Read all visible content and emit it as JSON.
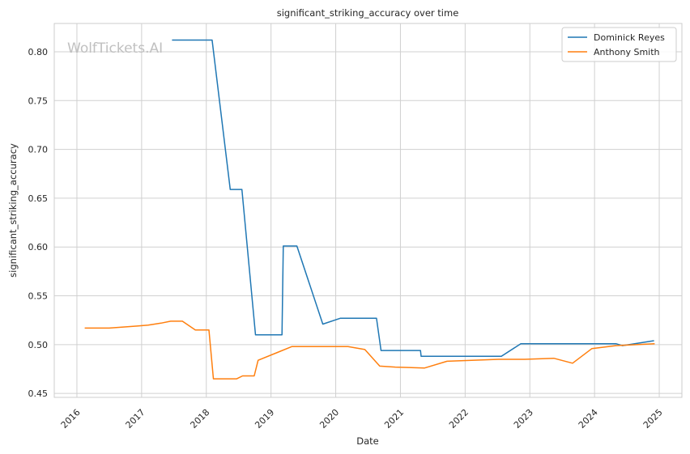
{
  "chart_data": {
    "type": "line",
    "title": "significant_striking_accuracy over time",
    "xlabel": "Date",
    "ylabel": "significant_striking_accuracy",
    "x_ticks": [
      "2016",
      "2017",
      "2018",
      "2019",
      "2020",
      "2021",
      "2022",
      "2023",
      "2024",
      "2025"
    ],
    "y_ticks": [
      "0.45",
      "0.50",
      "0.55",
      "0.60",
      "0.65",
      "0.70",
      "0.75",
      "0.80"
    ],
    "xlim": [
      2015.65,
      2025.35
    ],
    "ylim": [
      0.446,
      0.829
    ],
    "grid": true,
    "legend_position": "top-right",
    "watermark": "WolfTickets.AI",
    "series": [
      {
        "name": "Dominick Reyes",
        "color": "#1f77b4",
        "points": [
          [
            2017.47,
            0.812
          ],
          [
            2018.09,
            0.812
          ],
          [
            2018.37,
            0.659
          ],
          [
            2018.55,
            0.659
          ],
          [
            2018.76,
            0.51
          ],
          [
            2019.17,
            0.51
          ],
          [
            2019.19,
            0.601
          ],
          [
            2019.4,
            0.601
          ],
          [
            2019.8,
            0.521
          ],
          [
            2020.07,
            0.527
          ],
          [
            2020.63,
            0.527
          ],
          [
            2020.7,
            0.494
          ],
          [
            2021.31,
            0.494
          ],
          [
            2021.32,
            0.488
          ],
          [
            2022.56,
            0.488
          ],
          [
            2022.86,
            0.501
          ],
          [
            2024.33,
            0.501
          ],
          [
            2024.43,
            0.499
          ],
          [
            2024.92,
            0.504
          ]
        ]
      },
      {
        "name": "Anthony Smith",
        "color": "#ff7f0e",
        "points": [
          [
            2016.12,
            0.517
          ],
          [
            2016.5,
            0.517
          ],
          [
            2016.93,
            0.519
          ],
          [
            2017.1,
            0.52
          ],
          [
            2017.3,
            0.522
          ],
          [
            2017.45,
            0.524
          ],
          [
            2017.63,
            0.524
          ],
          [
            2017.83,
            0.515
          ],
          [
            2018.04,
            0.515
          ],
          [
            2018.11,
            0.465
          ],
          [
            2018.47,
            0.465
          ],
          [
            2018.56,
            0.468
          ],
          [
            2018.74,
            0.468
          ],
          [
            2018.8,
            0.484
          ],
          [
            2019.1,
            0.492
          ],
          [
            2019.32,
            0.498
          ],
          [
            2019.72,
            0.498
          ],
          [
            2020.19,
            0.498
          ],
          [
            2020.45,
            0.495
          ],
          [
            2020.68,
            0.478
          ],
          [
            2020.92,
            0.477
          ],
          [
            2021.37,
            0.476
          ],
          [
            2021.72,
            0.483
          ],
          [
            2022.52,
            0.485
          ],
          [
            2022.92,
            0.485
          ],
          [
            2023.37,
            0.486
          ],
          [
            2023.66,
            0.481
          ],
          [
            2023.96,
            0.496
          ],
          [
            2024.33,
            0.499
          ],
          [
            2024.93,
            0.501
          ]
        ]
      }
    ]
  }
}
